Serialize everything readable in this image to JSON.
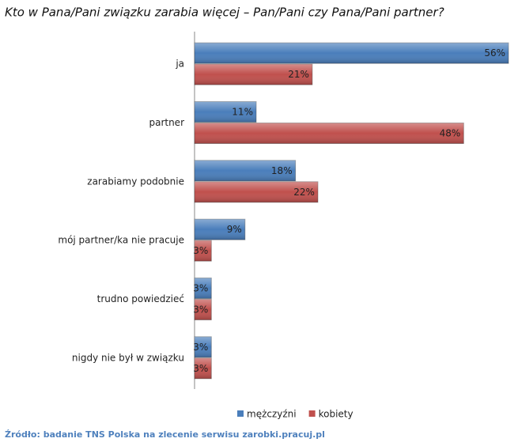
{
  "chart_data": {
    "type": "bar",
    "orientation": "horizontal",
    "title": "Kto w Pana/Pani związku zarabia więcej – Pan/Pani czy Pana/Pani partner?",
    "categories": [
      "ja",
      "partner",
      "zarabiamy podobnie",
      "mój partner/ka nie pracuje",
      "trudno powiedzieć",
      "nigdy nie był w związku"
    ],
    "series": [
      {
        "name": "mężczyźni",
        "color": "#4a7ebb",
        "values": [
          56,
          11,
          18,
          9,
          3,
          3
        ],
        "value_labels": [
          "56%",
          "11%",
          "18%",
          "9%",
          "3%",
          "3%"
        ]
      },
      {
        "name": "kobiety",
        "color": "#c0504d",
        "values": [
          21,
          48,
          22,
          3,
          3,
          3
        ],
        "value_labels": [
          "21%",
          "48%",
          "22%",
          "3%",
          "3%",
          "3%"
        ]
      }
    ],
    "xlim": [
      0,
      56
    ],
    "legend": "bottom",
    "source": "Źródło: badanie TNS Polska na zlecenie serwisu zarobki.pracuj.pl"
  }
}
